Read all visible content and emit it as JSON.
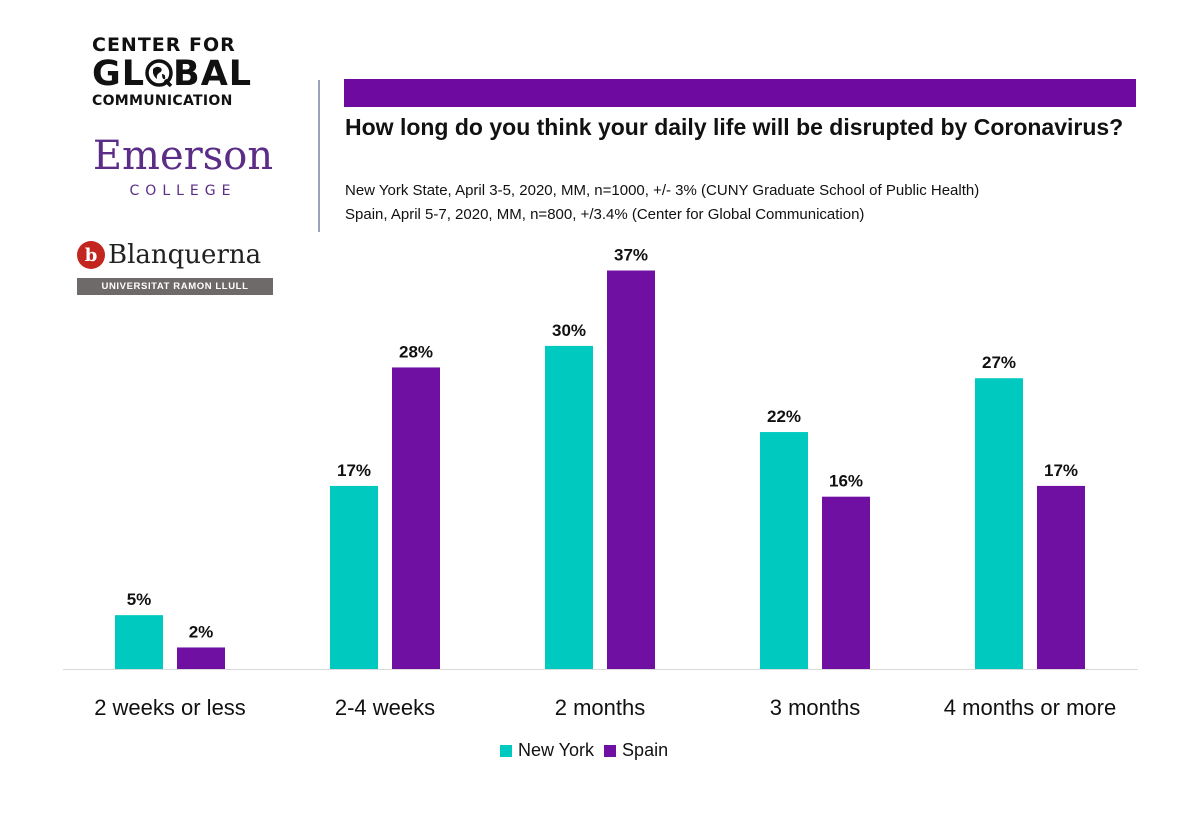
{
  "logos": {
    "cgc": {
      "line1": "CENTER FOR",
      "line2_a": "GL",
      "line2_b": "BAL",
      "line3": "COMMUNICATION"
    },
    "emerson": {
      "name": "Emerson",
      "sub": "COLLEGE"
    },
    "blanquerna": {
      "mark": "b",
      "name": "Blanquerna",
      "bar": "UNIVERSITAT RAMON LLULL"
    }
  },
  "chart_data": {
    "type": "bar",
    "title": "How long do you think your daily life will be disrupted by Coronavirus?",
    "subtitles": [
      "New York State, April 3-5, 2020, MM, n=1000, +/- 3%  (CUNY Graduate School of Public Health)",
      "Spain, April 5-7, 2020, MM, n=800, +/3.4% (Center for Global Communication)"
    ],
    "categories": [
      "2 weeks or less",
      "2-4 weeks",
      "2 months",
      "3 months",
      "4 months or more"
    ],
    "series": [
      {
        "name": "New York",
        "values": [
          5,
          17,
          30,
          22,
          27
        ],
        "labels": [
          "5%",
          "17%",
          "30%",
          "22%",
          "27%"
        ],
        "color": "#00c9bf"
      },
      {
        "name": "Spain",
        "values": [
          2,
          28,
          37,
          16,
          17
        ],
        "labels": [
          "2%",
          "28%",
          "37%",
          "16%",
          "17%"
        ],
        "color": "#7010a3"
      }
    ],
    "ylim": [
      0,
      37
    ],
    "grid": false,
    "legend_position": "bottom"
  },
  "colors": {
    "accent_bar": "#6f0aa0",
    "new_york": "#00c9bf",
    "spain": "#7010a3"
  }
}
